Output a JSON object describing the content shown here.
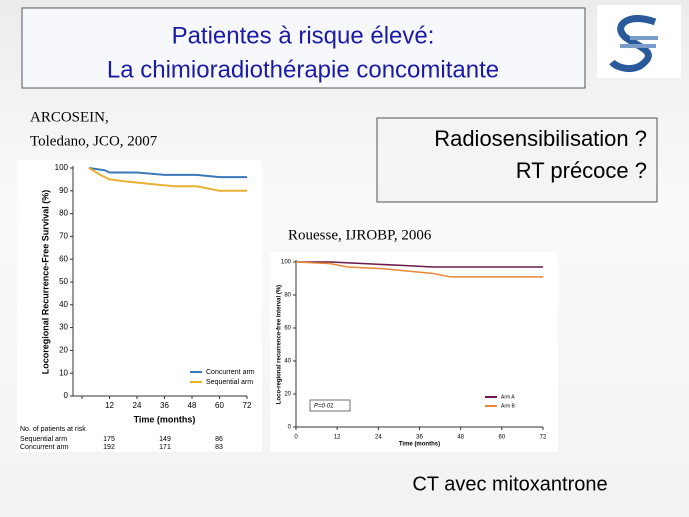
{
  "title_box": {
    "lines": [
      "Patientes à risque élevé:",
      "La chimioradiothérapie concomitante"
    ]
  },
  "citation_1": [
    "ARCOSEIN,",
    "Toledano, JCO, 2007"
  ],
  "question_box": {
    "lines": [
      "Radiosensibilisation ?",
      "RT précoce ?"
    ]
  },
  "citation_2": "Rouesse, IJROBP, 2006",
  "footer": "CT avec mitoxantrone",
  "chart_data": [
    {
      "type": "line",
      "xlabel": "Time (months)",
      "ylabel": "Locoregional Recurrence-Free Survival (%)",
      "xlim": [
        0,
        72
      ],
      "xticks": [
        0,
        12,
        24,
        36,
        48,
        60,
        72
      ],
      "ylim": [
        0,
        100
      ],
      "yticks": [
        0,
        10,
        20,
        30,
        40,
        50,
        60,
        70,
        80,
        90,
        100
      ],
      "series": [
        {
          "name": "Concurrent arm",
          "color": "#3a78b8",
          "x": [
            3,
            10,
            12,
            24,
            36,
            50,
            60,
            72
          ],
          "values": [
            100,
            99,
            98,
            98,
            97,
            97,
            96,
            96
          ]
        },
        {
          "name": "Sequential arm",
          "color": "#e8b030",
          "x": [
            3,
            8,
            12,
            20,
            30,
            40,
            50,
            60,
            72
          ],
          "values": [
            100,
            97,
            95,
            94,
            93,
            92,
            92,
            90,
            90
          ]
        }
      ],
      "risk_table": {
        "title": "No. of patients at risk",
        "rows": [
          {
            "name": "Sequential arm",
            "values": [
              175,
              149,
              86
            ]
          },
          {
            "name": "Concurrent arm",
            "values": [
              192,
              171,
              83
            ]
          }
        ]
      }
    },
    {
      "type": "line",
      "xlabel": "Time (months)",
      "ylabel": "Loco-regional recurrence-free interval (%)",
      "xlim": [
        0,
        72
      ],
      "xticks": [
        0,
        12,
        24,
        36,
        48,
        60,
        72
      ],
      "ylim": [
        0,
        100
      ],
      "yticks": [
        0,
        20,
        40,
        60,
        80,
        100
      ],
      "annotation": "P=0·01",
      "series": [
        {
          "name": "Arm A",
          "color": "#6b1a4a",
          "x": [
            0,
            10,
            20,
            30,
            40,
            50,
            72
          ],
          "values": [
            100,
            100,
            99,
            98,
            97,
            97,
            97
          ]
        },
        {
          "name": "Arm B",
          "color": "#e8883a",
          "x": [
            0,
            10,
            15,
            25,
            35,
            40,
            45,
            72
          ],
          "values": [
            100,
            99,
            97,
            96,
            94,
            93,
            91,
            91
          ]
        }
      ]
    }
  ]
}
